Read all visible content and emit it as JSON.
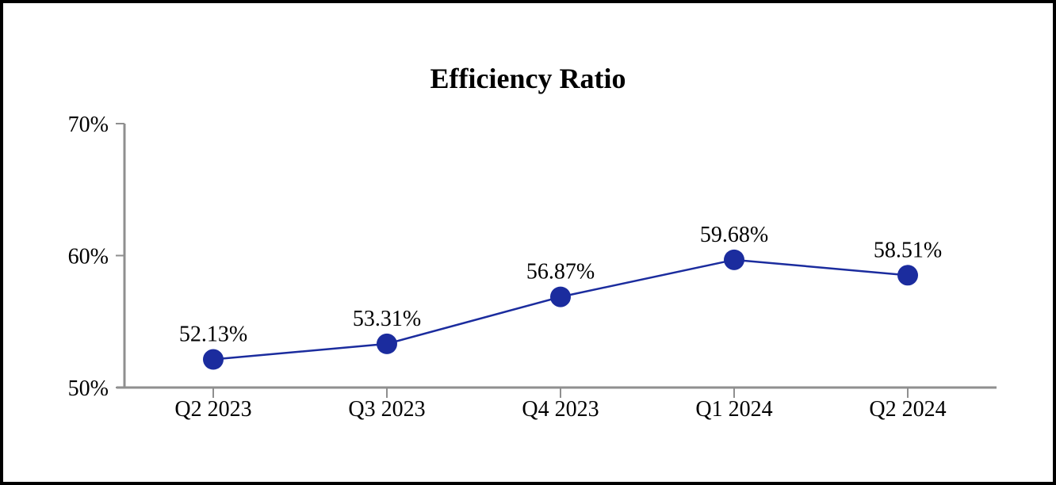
{
  "frame": {
    "background_color": "#FFFFFF",
    "border_color": "#000000"
  },
  "chart_data": {
    "type": "line",
    "title": "Efficiency Ratio",
    "categories": [
      "Q2 2023",
      "Q3 2023",
      "Q4 2023",
      "Q1 2024",
      "Q2 2024"
    ],
    "values": [
      52.13,
      53.31,
      56.87,
      59.68,
      58.51
    ],
    "point_labels": [
      "52.13%",
      "53.31%",
      "56.87%",
      "59.68%",
      "58.51%"
    ],
    "xlabel": "",
    "ylabel": "",
    "ylim": [
      50,
      70
    ],
    "yticks": [
      50,
      60,
      70
    ],
    "ytick_labels": [
      "50%",
      "60%",
      "70%"
    ],
    "grid": false,
    "legend_position": "none",
    "line_color": "#1B2C9E",
    "marker_color": "#1B2C9E",
    "axis_color": "#8F8F8F",
    "text_color": "#000000"
  }
}
